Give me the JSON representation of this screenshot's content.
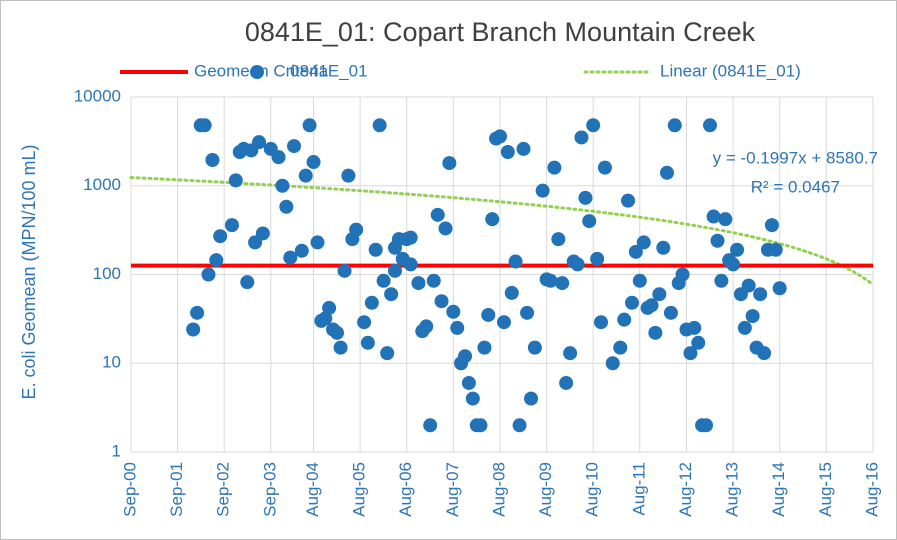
{
  "chart_data": {
    "type": "scatter",
    "title": "0841E_01: Copart Branch Mountain Creek",
    "ylabel": "E. coli Geomean (MPN/100 mL)",
    "log_scale": true,
    "grid": true,
    "legend": "top",
    "ylim": [
      1,
      10000
    ],
    "yticks": [
      1,
      10,
      100,
      1000,
      10000
    ],
    "xlim": [
      "2000-09",
      "2016-08"
    ],
    "xticks": [
      {
        "value": "2000-09",
        "label": "Sep-00"
      },
      {
        "value": "2001-09",
        "label": "Sep-01"
      },
      {
        "value": "2002-09",
        "label": "Sep-02"
      },
      {
        "value": "2003-09",
        "label": "Sep-03"
      },
      {
        "value": "2004-08",
        "label": "Aug-04"
      },
      {
        "value": "2005-08",
        "label": "Aug-05"
      },
      {
        "value": "2006-08",
        "label": "Aug-06"
      },
      {
        "value": "2007-08",
        "label": "Aug-07"
      },
      {
        "value": "2008-08",
        "label": "Aug-08"
      },
      {
        "value": "2009-08",
        "label": "Aug-09"
      },
      {
        "value": "2010-08",
        "label": "Aug-10"
      },
      {
        "value": "2011-08",
        "label": "Aug-11"
      },
      {
        "value": "2012-08",
        "label": "Aug-12"
      },
      {
        "value": "2013-08",
        "label": "Aug-13"
      },
      {
        "value": "2014-08",
        "label": "Aug-14"
      },
      {
        "value": "2015-08",
        "label": "Aug-15"
      },
      {
        "value": "2016-08",
        "label": "Aug-16"
      }
    ],
    "reference_lines": [
      {
        "name": "Geomean Criteria",
        "value": 126,
        "color": "#ff0000"
      }
    ],
    "series": [
      {
        "name": "0841E_01",
        "color": "#2272b8",
        "x": [
          "2002-01",
          "2002-02",
          "2002-03",
          "2002-04",
          "2002-05",
          "2002-06",
          "2002-07",
          "2002-08",
          "2002-11",
          "2002-12",
          "2003-01",
          "2003-02",
          "2003-03",
          "2003-04",
          "2003-05",
          "2003-06",
          "2003-07",
          "2003-09",
          "2003-11",
          "2003-12",
          "2004-01",
          "2004-02",
          "2004-03",
          "2004-05",
          "2004-06",
          "2004-07",
          "2004-08",
          "2004-09",
          "2004-10",
          "2004-11",
          "2004-12",
          "2005-01",
          "2005-02",
          "2005-03",
          "2005-04",
          "2005-05",
          "2005-06",
          "2005-07",
          "2005-09",
          "2005-10",
          "2005-11",
          "2005-12",
          "2006-01",
          "2006-02",
          "2006-03",
          "2006-04",
          "2006-05",
          "2006-05",
          "2006-06",
          "2006-07",
          "2006-08",
          "2006-09",
          "2006-09",
          "2006-11",
          "2006-12",
          "2007-01",
          "2007-02",
          "2007-03",
          "2007-04",
          "2007-05",
          "2007-06",
          "2007-07",
          "2007-08",
          "2007-09",
          "2007-10",
          "2007-11",
          "2007-12",
          "2008-01",
          "2008-02",
          "2008-03",
          "2008-04",
          "2008-05",
          "2008-06",
          "2008-07",
          "2008-08",
          "2008-09",
          "2008-10",
          "2008-11",
          "2008-12",
          "2009-01",
          "2009-02",
          "2009-03",
          "2009-04",
          "2009-05",
          "2009-07",
          "2009-08",
          "2009-09",
          "2009-10",
          "2009-11",
          "2009-12",
          "2010-01",
          "2010-02",
          "2010-03",
          "2010-04",
          "2010-05",
          "2010-06",
          "2010-07",
          "2010-08",
          "2010-09",
          "2010-10",
          "2010-11",
          "2011-01",
          "2011-03",
          "2011-04",
          "2011-05",
          "2011-06",
          "2011-07",
          "2011-08",
          "2011-09",
          "2011-10",
          "2011-11",
          "2011-12",
          "2012-01",
          "2012-02",
          "2012-03",
          "2012-04",
          "2012-05",
          "2012-06",
          "2012-07",
          "2012-08",
          "2012-09",
          "2012-10",
          "2012-11",
          "2012-12",
          "2013-01",
          "2013-02",
          "2013-03",
          "2013-04",
          "2013-05",
          "2013-06",
          "2013-07",
          "2013-08",
          "2013-09",
          "2013-10",
          "2013-11",
          "2013-12",
          "2014-01",
          "2014-02",
          "2014-03",
          "2014-04",
          "2014-05",
          "2014-06",
          "2014-07",
          "2014-08"
        ],
        "values": [
          24,
          37,
          4800,
          4800,
          100,
          1950,
          145,
          270,
          360,
          1150,
          2400,
          2600,
          82,
          2500,
          230,
          3100,
          290,
          2600,
          2100,
          1000,
          580,
          155,
          2800,
          185,
          1300,
          4800,
          1850,
          230,
          30,
          32,
          42,
          24,
          22,
          15,
          110,
          1300,
          250,
          320,
          29,
          17,
          48,
          190,
          4800,
          85,
          13,
          60,
          110,
          200,
          250,
          150,
          250,
          130,
          260,
          80,
          23,
          26,
          2,
          85,
          470,
          50,
          330,
          1800,
          38,
          25,
          10,
          12,
          6,
          4,
          2,
          2,
          15,
          35,
          420,
          3400,
          3600,
          29,
          2400,
          62,
          140,
          2,
          2600,
          37,
          4,
          15,
          880,
          88,
          85,
          1600,
          250,
          80,
          6,
          13,
          140,
          130,
          3500,
          730,
          400,
          4800,
          150,
          29,
          1600,
          10,
          15,
          31,
          680,
          48,
          180,
          85,
          230,
          42,
          45,
          22,
          60,
          200,
          1400,
          37,
          4800,
          80,
          100,
          24,
          13,
          25,
          17,
          2,
          2,
          4800,
          450,
          240,
          85,
          420,
          145,
          130,
          190,
          60,
          25,
          75,
          34,
          15,
          60,
          13,
          190,
          360,
          190,
          70
        ]
      }
    ],
    "trendline": {
      "name": "Linear (0841E_01)",
      "color": "#92d050",
      "slope": -0.1997,
      "intercept": 8580.7,
      "equation": "y = -0.1997x + 8580.7",
      "r_squared_label": "R² = 0.0467"
    }
  }
}
